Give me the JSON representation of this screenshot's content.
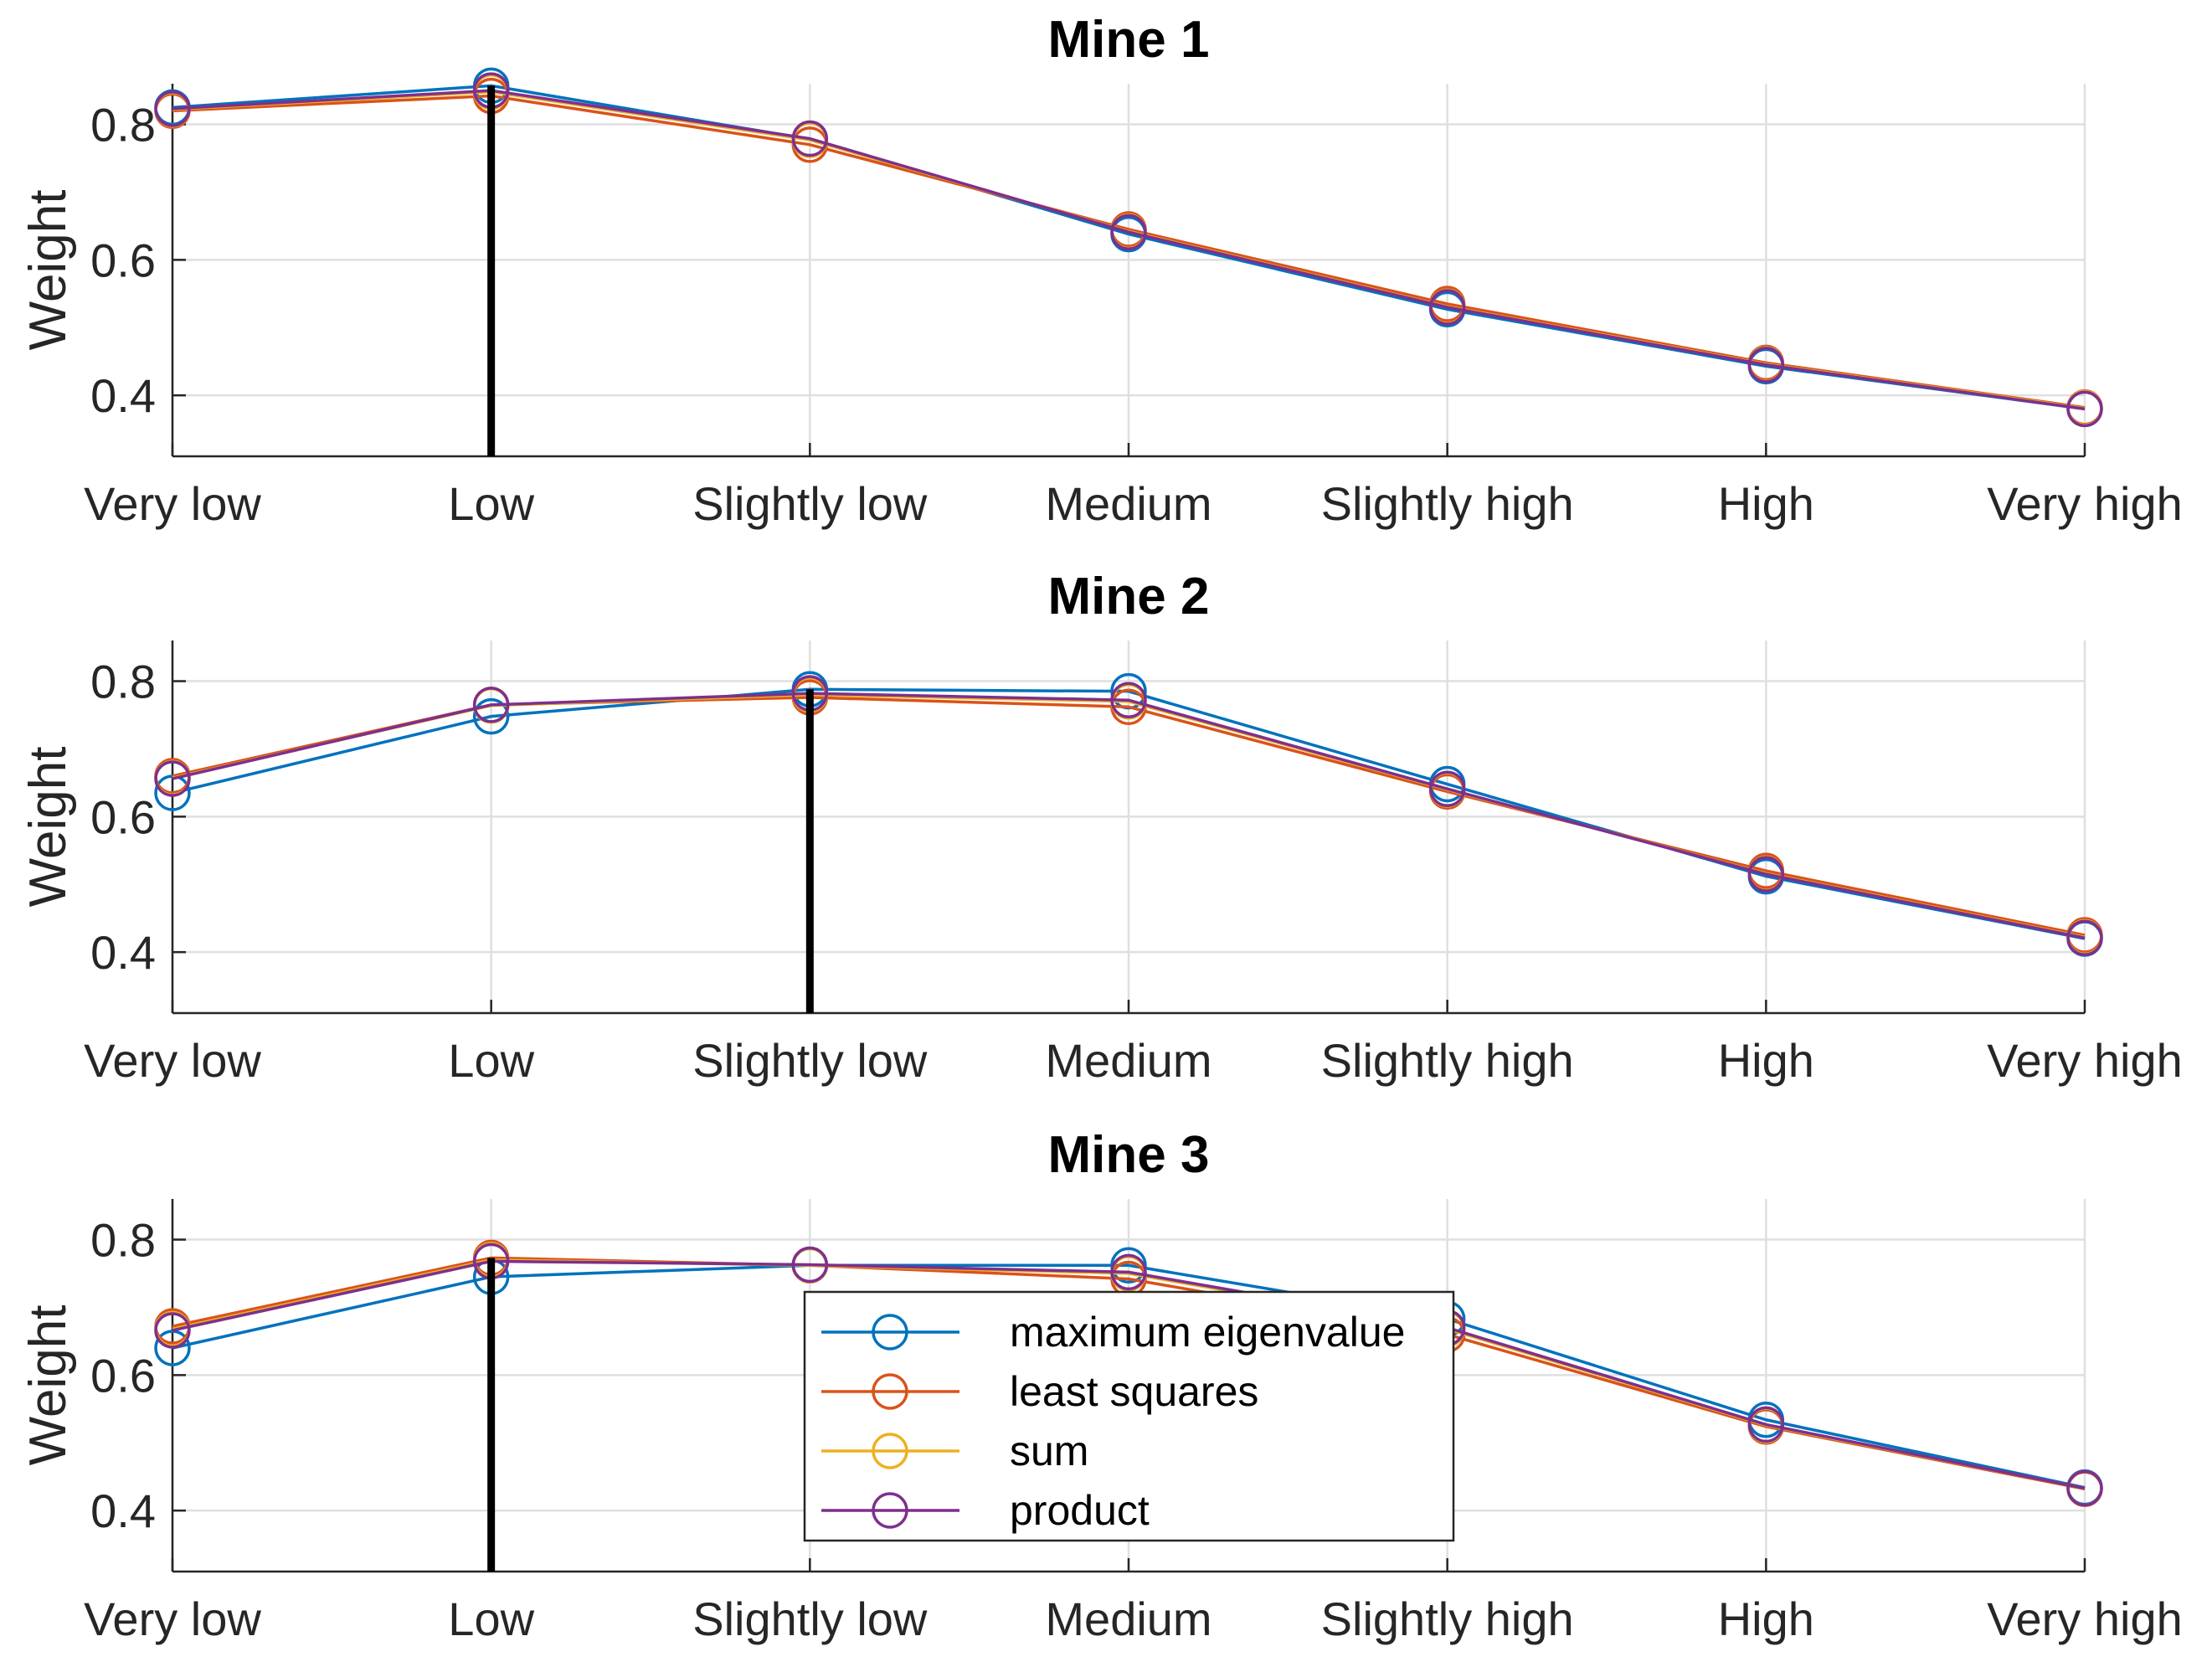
{
  "chart_data": [
    {
      "type": "line",
      "title": "Mine 1",
      "ylabel": "Weight",
      "xlabel": "",
      "categories": [
        "Very low",
        "Low",
        "Slightly low",
        "Medium",
        "Slightly high",
        "High",
        "Very high"
      ],
      "ylim": [
        0.31,
        0.86
      ],
      "yticks": [
        0.4,
        0.6,
        0.8
      ],
      "ytick_labels": [
        "0.4",
        "0.6",
        "0.8"
      ],
      "grid": true,
      "highlight_category": "Low",
      "series": [
        {
          "name": "maximum eigenvalue",
          "color": "#0072BD",
          "values": [
            0.825,
            0.857,
            0.778,
            0.638,
            0.527,
            0.443,
            0.38
          ]
        },
        {
          "name": "least squares",
          "color": "#D95319",
          "values": [
            0.82,
            0.842,
            0.77,
            0.645,
            0.535,
            0.448,
            0.382
          ]
        },
        {
          "name": "sum",
          "color": "#EDB120",
          "values": [
            0.822,
            0.848,
            0.777,
            0.642,
            0.531,
            0.446,
            0.381
          ]
        },
        {
          "name": "product",
          "color": "#7E2F8E",
          "values": [
            0.823,
            0.85,
            0.779,
            0.641,
            0.53,
            0.445,
            0.38
          ]
        }
      ]
    },
    {
      "type": "line",
      "title": "Mine 2",
      "ylabel": "Weight",
      "xlabel": "",
      "categories": [
        "Very low",
        "Low",
        "Slightly low",
        "Medium",
        "Slightly high",
        "High",
        "Very high"
      ],
      "ylim": [
        0.31,
        0.86
      ],
      "yticks": [
        0.4,
        0.6,
        0.8
      ],
      "ytick_labels": [
        "0.4",
        "0.6",
        "0.8"
      ],
      "grid": true,
      "highlight_category": "Slightly low",
      "series": [
        {
          "name": "maximum eigenvalue",
          "color": "#0072BD",
          "values": [
            0.635,
            0.748,
            0.788,
            0.785,
            0.648,
            0.512,
            0.42
          ]
        },
        {
          "name": "least squares",
          "color": "#D95319",
          "values": [
            0.66,
            0.765,
            0.776,
            0.762,
            0.637,
            0.52,
            0.425
          ]
        },
        {
          "name": "sum",
          "color": "#EDB120",
          "values": [
            0.657,
            0.764,
            0.78,
            0.77,
            0.64,
            0.516,
            0.422
          ]
        },
        {
          "name": "product",
          "color": "#7E2F8E",
          "values": [
            0.656,
            0.765,
            0.782,
            0.772,
            0.641,
            0.515,
            0.421
          ]
        }
      ]
    },
    {
      "type": "line",
      "title": "Mine 3",
      "ylabel": "Weight",
      "xlabel": "",
      "categories": [
        "Very low",
        "Low",
        "Slightly low",
        "Medium",
        "Slightly high",
        "High",
        "Very high"
      ],
      "ylim": [
        0.31,
        0.86
      ],
      "yticks": [
        0.4,
        0.6,
        0.8
      ],
      "ytick_labels": [
        "0.4",
        "0.6",
        "0.8"
      ],
      "grid": true,
      "highlight_category": "Low",
      "legend": {
        "position": "bottom-center",
        "entries": [
          "maximum eigenvalue",
          "least squares",
          "sum",
          "product"
        ]
      },
      "series": [
        {
          "name": "maximum eigenvalue",
          "color": "#0072BD",
          "values": [
            0.64,
            0.745,
            0.762,
            0.762,
            0.683,
            0.534,
            0.434
          ]
        },
        {
          "name": "least squares",
          "color": "#D95319",
          "values": [
            0.672,
            0.773,
            0.762,
            0.742,
            0.66,
            0.524,
            0.432
          ]
        },
        {
          "name": "sum",
          "color": "#EDB120",
          "values": [
            0.668,
            0.77,
            0.762,
            0.75,
            0.668,
            0.526,
            0.433
          ]
        },
        {
          "name": "product",
          "color": "#7E2F8E",
          "values": [
            0.666,
            0.768,
            0.763,
            0.752,
            0.67,
            0.527,
            0.433
          ]
        }
      ]
    }
  ]
}
